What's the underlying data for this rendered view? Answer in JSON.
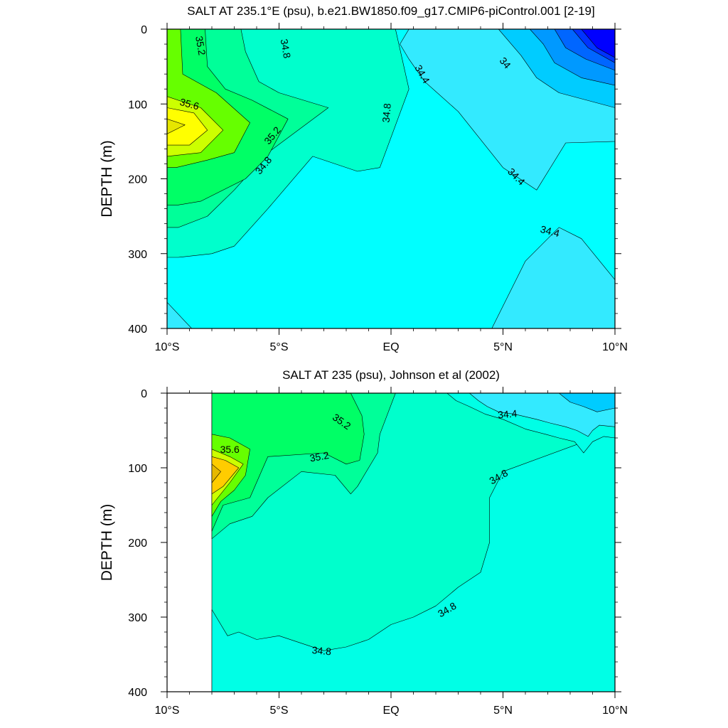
{
  "chart_data": [
    {
      "type": "contour",
      "title": "SALT AT 235.1°E (psu), b.e21.BW1850.f09_g17.CMIP6-piControl.001 [2-19]",
      "ylabel": "DEPTH (m)",
      "xlim": [
        -10,
        10
      ],
      "ylim": [
        400,
        0
      ],
      "xticks": [
        {
          "value": -10,
          "label": "10°S"
        },
        {
          "value": -5,
          "label": "5°S"
        },
        {
          "value": 0,
          "label": "EQ"
        },
        {
          "value": 5,
          "label": "5°N"
        },
        {
          "value": 10,
          "label": "10°N"
        }
      ],
      "yticks": [
        0,
        100,
        200,
        300,
        400
      ],
      "fill_regions": [
        {
          "color": "#00ffff",
          "x": [
            -10,
            10,
            10,
            -10
          ],
          "y": [
            0,
            0,
            400,
            400
          ]
        },
        {
          "color": "#33eaff",
          "x": [
            -10,
            -8.9,
            -10
          ],
          "y": [
            365,
            400,
            400
          ]
        },
        {
          "color": "#33eaff",
          "x": [
            4.5,
            6,
            7.5,
            8.5,
            10,
            10,
            4.2
          ],
          "y": [
            400,
            310,
            265,
            280,
            335,
            400,
            400
          ]
        },
        {
          "color": "#33eaff",
          "x": [
            2.5,
            4,
            6,
            7.2,
            8.5,
            10,
            10,
            7.8,
            6.5,
            5,
            3,
            1.5,
            0.8,
            0.4,
            0.8,
            2.5
          ],
          "y": [
            0,
            0,
            0,
            0,
            0,
            0,
            150,
            152,
            215,
            185,
            110,
            70,
            40,
            20,
            0,
            0
          ]
        },
        {
          "color": "#00ccff",
          "x": [
            4.8,
            10,
            10,
            7.5,
            6.5,
            5.8,
            4.8
          ],
          "y": [
            0,
            0,
            105,
            85,
            65,
            35,
            0
          ]
        },
        {
          "color": "#0099ff",
          "x": [
            6.2,
            10,
            10,
            8.5,
            7.3,
            6.8,
            6.2
          ],
          "y": [
            0,
            0,
            75,
            65,
            45,
            20,
            0
          ]
        },
        {
          "color": "#0066ff",
          "x": [
            7.3,
            10,
            10,
            8.7,
            7.8,
            7.3
          ],
          "y": [
            0,
            0,
            55,
            40,
            25,
            0
          ]
        },
        {
          "color": "#0033ff",
          "x": [
            8.1,
            10,
            10,
            8.8,
            8.1
          ],
          "y": [
            0,
            0,
            45,
            25,
            0
          ]
        },
        {
          "color": "#0000ff",
          "x": [
            8.5,
            10,
            10,
            9.2,
            8.5
          ],
          "y": [
            0,
            0,
            38,
            25,
            0
          ]
        },
        {
          "color": "#00ffcc",
          "x": [
            -10,
            0.2,
            0.8,
            -0.5,
            -1.5,
            -3.5,
            -5.5,
            -7,
            -8,
            -9.5,
            -10
          ],
          "y": [
            0,
            0,
            80,
            185,
            190,
            170,
            240,
            290,
            300,
            305,
            305
          ]
        },
        {
          "color": "#00ff99",
          "x": [
            -10,
            -6.7,
            -6.5,
            -5.9,
            -5,
            -2.8,
            -5.5,
            -7,
            -8.2,
            -9.5,
            -10
          ],
          "y": [
            0,
            0,
            30,
            70,
            85,
            105,
            165,
            215,
            250,
            265,
            265
          ]
        },
        {
          "color": "#00ff66",
          "x": [
            -10,
            -8.3,
            -8.2,
            -7.4,
            -6.2,
            -4.6,
            -5.5,
            -6.5,
            -8.5,
            -9.5,
            -10
          ],
          "y": [
            0,
            0,
            50,
            80,
            95,
            120,
            170,
            200,
            230,
            235,
            235
          ]
        },
        {
          "color": "#66ff00",
          "x": [
            -10,
            -9.4,
            -9.3,
            -7.8,
            -6.3,
            -7,
            -8.2,
            -9.6,
            -10
          ],
          "y": [
            0,
            0,
            60,
            85,
            125,
            165,
            175,
            185,
            185
          ]
        },
        {
          "color": "#ccff00",
          "x": [
            -10,
            -8.5,
            -7.5,
            -8.5,
            -10
          ],
          "y": [
            90,
            105,
            135,
            165,
            170
          ]
        },
        {
          "color": "#ffff00",
          "x": [
            -10,
            -8.8,
            -8.2,
            -9,
            -10
          ],
          "y": [
            105,
            112,
            135,
            155,
            155
          ]
        },
        {
          "color": "#e6e600",
          "x": [
            -10,
            -9.2,
            -10
          ],
          "y": [
            120,
            128,
            140
          ]
        }
      ],
      "contour_labels": [
        {
          "text": "35.2",
          "x": -8.5,
          "y": 22,
          "angle": 80
        },
        {
          "text": "34.8",
          "x": -4.7,
          "y": 26,
          "angle": 80
        },
        {
          "text": "34.4",
          "x": 1.4,
          "y": 60,
          "angle": 60
        },
        {
          "text": "34",
          "x": 5.1,
          "y": 45,
          "angle": 50
        },
        {
          "text": "35.6",
          "x": -9.0,
          "y": 100,
          "angle": 15
        },
        {
          "text": "34.8",
          "x": -0.2,
          "y": 112,
          "angle": -85
        },
        {
          "text": "35.2",
          "x": -5.3,
          "y": 142,
          "angle": -50
        },
        {
          "text": "34.8",
          "x": -5.7,
          "y": 182,
          "angle": -50
        },
        {
          "text": "34.4",
          "x": 5.6,
          "y": 197,
          "angle": 45
        },
        {
          "text": "34.4",
          "x": 7.1,
          "y": 270,
          "angle": 15
        }
      ]
    },
    {
      "type": "contour",
      "title": "SALT AT 235 (psu), Johnson et al (2002)",
      "ylabel": "DEPTH (m)",
      "xlim": [
        -10,
        10
      ],
      "ylim": [
        400,
        0
      ],
      "xticks": [
        {
          "value": -10,
          "label": "10°S"
        },
        {
          "value": -5,
          "label": "5°S"
        },
        {
          "value": 0,
          "label": "EQ"
        },
        {
          "value": 5,
          "label": "5°N"
        },
        {
          "value": 10,
          "label": "10°N"
        }
      ],
      "yticks": [
        0,
        100,
        200,
        300,
        400
      ],
      "data_start_x": -8,
      "fill_regions": [
        {
          "color": "#00ffcc",
          "x": [
            -8,
            10,
            10,
            -8
          ],
          "y": [
            0,
            0,
            400,
            400
          ]
        },
        {
          "color": "#00ffe6",
          "x": [
            -8,
            -7.3,
            -6.8,
            -6,
            -5,
            -4,
            -3,
            -2,
            -1,
            0,
            1,
            2,
            3,
            4,
            4.4,
            4.4,
            5,
            10,
            10,
            -8
          ],
          "y": [
            290,
            325,
            320,
            330,
            325,
            335,
            345,
            340,
            330,
            310,
            300,
            285,
            260,
            240,
            200,
            140,
            105,
            50,
            400,
            400
          ]
        },
        {
          "color": "#00ffe6",
          "x": [
            2.5,
            10,
            10,
            9.5,
            9,
            8.6,
            8.2,
            7.5,
            6.9,
            6,
            5,
            4.2,
            3.5,
            2.9,
            2.5
          ],
          "y": [
            0,
            0,
            60,
            58,
            65,
            80,
            65,
            60,
            55,
            48,
            35,
            28,
            18,
            10,
            0
          ]
        },
        {
          "color": "#33eaff",
          "x": [
            3.5,
            10,
            10,
            9.3,
            9,
            8.8,
            8.3,
            7.8,
            7.1,
            6.5,
            5.5,
            4.8,
            4.3,
            3.9,
            3.5
          ],
          "y": [
            0,
            0,
            45,
            43,
            50,
            58,
            50,
            45,
            40,
            35,
            28,
            25,
            18,
            10,
            0
          ]
        },
        {
          "color": "#00ccff",
          "x": [
            7.5,
            10,
            10,
            9.2,
            8.6,
            8,
            7.5
          ],
          "y": [
            0,
            0,
            20,
            25,
            18,
            12,
            0
          ]
        },
        {
          "color": "#00ff99",
          "x": [
            -8,
            0.2,
            -0.5,
            -0.6,
            -1.2,
            -1.5,
            -1.8,
            -2.5,
            -4,
            -5.5,
            -6.2,
            -7.2,
            -8
          ],
          "y": [
            0,
            0,
            55,
            80,
            110,
            125,
            135,
            110,
            105,
            140,
            165,
            175,
            195
          ]
        },
        {
          "color": "#00ff66",
          "x": [
            -8,
            -1.8,
            -1.3,
            -1.2,
            -1.4,
            -2,
            -3,
            -5.5,
            -6.3,
            -7.5,
            -8
          ],
          "y": [
            0,
            0,
            30,
            55,
            90,
            95,
            80,
            85,
            140,
            150,
            185
          ]
        },
        {
          "color": "#66ff00",
          "x": [
            -8,
            -7.2,
            -6.3,
            -6.5,
            -7,
            -7.6,
            -8
          ],
          "y": [
            55,
            60,
            75,
            110,
            130,
            145,
            165
          ]
        },
        {
          "color": "#ccff00",
          "x": [
            -8,
            -7.2,
            -6.6,
            -7.2,
            -8
          ],
          "y": [
            75,
            85,
            95,
            120,
            150
          ]
        },
        {
          "color": "#ffcc00",
          "x": [
            -8,
            -7.4,
            -6.8,
            -7.5,
            -8
          ],
          "y": [
            85,
            90,
            100,
            125,
            135
          ]
        },
        {
          "color": "#e6b800",
          "x": [
            -8,
            -7.6,
            -8
          ],
          "y": [
            95,
            105,
            120
          ]
        }
      ],
      "contour_labels": [
        {
          "text": "35.2",
          "x": -2.2,
          "y": 38,
          "angle": 35
        },
        {
          "text": "34.4",
          "x": 5.2,
          "y": 28,
          "angle": -5
        },
        {
          "text": "35.6",
          "x": -7.2,
          "y": 75,
          "angle": 0
        },
        {
          "text": "35.2",
          "x": -3.2,
          "y": 85,
          "angle": -10
        },
        {
          "text": "34.8",
          "x": 4.8,
          "y": 112,
          "angle": -30
        },
        {
          "text": "34.8",
          "x": 2.5,
          "y": 290,
          "angle": -30
        },
        {
          "text": "34.8",
          "x": -3.1,
          "y": 345,
          "angle": 5
        }
      ]
    }
  ]
}
